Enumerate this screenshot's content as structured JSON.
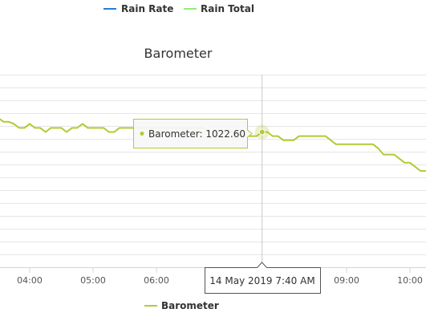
{
  "top_legend": {
    "items": [
      {
        "label": "Rain Rate",
        "color": "#2b7bd1"
      },
      {
        "label": "Rain Total",
        "color": "#90ed7d"
      }
    ]
  },
  "chart_data": {
    "type": "line",
    "title": "Barometer",
    "xlabel": "",
    "ylabel": "",
    "x_ticks": [
      "04:00",
      "05:00",
      "06:00",
      "07:00",
      "08:00",
      "09:00",
      "10:00"
    ],
    "series": [
      {
        "name": "Barometer",
        "color": "#b5c934",
        "x": [
          "03:30",
          "03:35",
          "03:40",
          "03:45",
          "03:50",
          "03:55",
          "04:00",
          "04:05",
          "04:10",
          "04:15",
          "04:20",
          "04:25",
          "04:30",
          "04:35",
          "04:40",
          "04:45",
          "04:50",
          "04:55",
          "05:00",
          "05:05",
          "05:10",
          "05:15",
          "05:20",
          "05:25",
          "05:30",
          "05:35",
          "05:40",
          "05:45",
          "05:50",
          "05:55",
          "06:00",
          "06:05",
          "06:10",
          "06:15",
          "06:20",
          "06:25",
          "06:30",
          "06:35",
          "06:40",
          "06:45",
          "06:50",
          "06:55",
          "07:00",
          "07:05",
          "07:10",
          "07:15",
          "07:20",
          "07:25",
          "07:30",
          "07:35",
          "07:40",
          "07:45",
          "07:50",
          "07:55",
          "08:00",
          "08:05",
          "08:10",
          "08:15",
          "08:20",
          "08:25",
          "08:30",
          "08:35",
          "08:40",
          "08:45",
          "08:50",
          "08:55",
          "09:00",
          "09:05",
          "09:10",
          "09:15",
          "09:20",
          "09:25",
          "09:30",
          "09:35",
          "09:40",
          "09:45",
          "09:50",
          "09:55",
          "10:00",
          "10:05",
          "10:10",
          "10:15"
        ],
        "values": [
          1023.3,
          1023.1,
          1023.1,
          1023.0,
          1022.8,
          1022.8,
          1023.0,
          1022.8,
          1022.8,
          1022.6,
          1022.8,
          1022.8,
          1022.8,
          1022.6,
          1022.8,
          1022.8,
          1023.0,
          1022.8,
          1022.8,
          1022.8,
          1022.8,
          1022.6,
          1022.6,
          1022.8,
          1022.8,
          1022.8,
          1022.8,
          1022.8,
          1022.8,
          1022.8,
          1022.8,
          1022.8,
          1022.8,
          1022.8,
          1022.8,
          1022.8,
          1022.8,
          1022.8,
          1022.8,
          1022.8,
          1022.6,
          1022.6,
          1022.4,
          1022.6,
          1022.6,
          1022.6,
          1022.4,
          1022.4,
          1022.4,
          1022.4,
          1022.6,
          1022.6,
          1022.4,
          1022.4,
          1022.2,
          1022.2,
          1022.2,
          1022.4,
          1022.4,
          1022.4,
          1022.4,
          1022.4,
          1022.4,
          1022.2,
          1022.0,
          1022.0,
          1022.0,
          1022.0,
          1022.0,
          1022.0,
          1022.0,
          1022.0,
          1021.8,
          1021.5,
          1021.5,
          1021.5,
          1021.3,
          1021.1,
          1021.1,
          1020.9,
          1020.7,
          1020.7
        ]
      }
    ],
    "ylim": [
      1016.0,
      1025.4
    ],
    "grid": true,
    "legend_position": "bottom-center",
    "hover": {
      "index": 50,
      "tooltip_label": "Barometer: 1022.60",
      "crosshair_label": "14 May 2019 7:40 AM"
    }
  }
}
